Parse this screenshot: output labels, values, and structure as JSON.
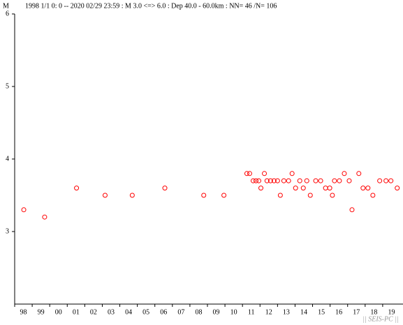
{
  "chart_data": {
    "type": "scatter",
    "title": "1998 1/1 0: 0 -- 2020 02/29 23:59  : M 3.0 <=> 6.0   :  Dep 40.0 - 60.0km :  NN= 46 /N= 106",
    "ylabel": "M",
    "footer": "|| SEIS-PC ||",
    "color": "#ff0000",
    "xlim": [
      1998,
      2020.16
    ],
    "ylim": [
      2,
      6
    ],
    "yticks": [
      3,
      4,
      5,
      6
    ],
    "xticks": [
      {
        "value": 1998,
        "label": "98"
      },
      {
        "value": 1999,
        "label": "99"
      },
      {
        "value": 2000,
        "label": "00"
      },
      {
        "value": 2001,
        "label": "01"
      },
      {
        "value": 2002,
        "label": "02"
      },
      {
        "value": 2003,
        "label": "03"
      },
      {
        "value": 2004,
        "label": "04"
      },
      {
        "value": 2005,
        "label": "05"
      },
      {
        "value": 2006,
        "label": "06"
      },
      {
        "value": 2007,
        "label": "07"
      },
      {
        "value": 2008,
        "label": "08"
      },
      {
        "value": 2009,
        "label": "09"
      },
      {
        "value": 2010,
        "label": "10"
      },
      {
        "value": 2011,
        "label": "11"
      },
      {
        "value": 2012,
        "label": "12"
      },
      {
        "value": 2013,
        "label": "13"
      },
      {
        "value": 2014,
        "label": "14"
      },
      {
        "value": 2015,
        "label": "15"
      },
      {
        "value": 2016,
        "label": "16"
      },
      {
        "value": 2017,
        "label": "17"
      },
      {
        "value": 2018,
        "label": "18"
      },
      {
        "value": 2019,
        "label": "19"
      }
    ],
    "x": [
      1998.52,
      1999.71,
      2001.53,
      2003.16,
      2004.71,
      2006.57,
      2008.79,
      2009.94,
      2011.25,
      2011.41,
      2011.61,
      2011.77,
      2011.93,
      2012.05,
      2012.25,
      2012.4,
      2012.6,
      2012.8,
      2013.0,
      2013.16,
      2013.36,
      2013.63,
      2013.83,
      2014.03,
      2014.27,
      2014.47,
      2014.67,
      2014.87,
      2015.18,
      2015.46,
      2015.74,
      2015.98,
      2016.13,
      2016.25,
      2016.53,
      2016.81,
      2017.09,
      2017.25,
      2017.64,
      2017.88,
      2018.16,
      2018.44,
      2018.83,
      2019.19,
      2019.47,
      2019.83
    ],
    "values": [
      3.3,
      3.2,
      3.6,
      3.5,
      3.5,
      3.6,
      3.5,
      3.5,
      3.8,
      3.8,
      3.7,
      3.7,
      3.7,
      3.6,
      3.8,
      3.7,
      3.7,
      3.7,
      3.7,
      3.5,
      3.7,
      3.7,
      3.8,
      3.6,
      3.7,
      3.6,
      3.7,
      3.5,
      3.7,
      3.7,
      3.6,
      3.6,
      3.5,
      3.7,
      3.7,
      3.8,
      3.7,
      3.3,
      3.8,
      3.6,
      3.6,
      3.5,
      3.7,
      3.7,
      3.7,
      3.6
    ]
  }
}
